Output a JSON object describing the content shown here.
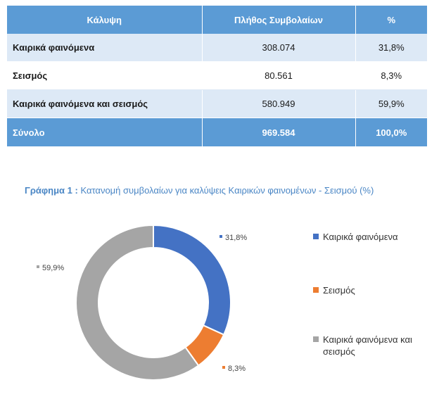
{
  "table": {
    "headers": [
      "Κάλυψη",
      "Πλήθος Συμβολαίων",
      "%"
    ],
    "rows": [
      {
        "label": "Καιρικά φαινόμενα",
        "count": "308.074",
        "pct": "31,8%"
      },
      {
        "label": "Σεισμός",
        "count": "80.561",
        "pct": "8,3%"
      },
      {
        "label": "Καιρικά φαινόμενα και σεισμός",
        "count": "580.949",
        "pct": "59,9%"
      }
    ],
    "total": {
      "label": "Σύνολο",
      "count": "969.584",
      "pct": "100,0%"
    }
  },
  "chart_title_lead": "Γράφημα 1 :",
  "chart_title_text": "Κατανομή συμβολαίων για καλύψεις Καιρικών φαινομένων - Σεισμού (%)",
  "chart_data": {
    "type": "pie",
    "variant": "donut",
    "title": "Κατανομή συμβολαίων για καλύψεις Καιρικών φαινομένων - Σεισμού (%)",
    "categories": [
      "Καιρικά φαινόμενα",
      "Σεισμός",
      "Καιρικά φαινόμενα και σεισμός"
    ],
    "values": [
      31.8,
      8.3,
      59.9
    ],
    "data_labels": [
      "31,8%",
      "8,3%",
      "59,9%"
    ],
    "colors": [
      "#4472c4",
      "#ed7d31",
      "#a5a5a5"
    ],
    "legend_position": "right",
    "start_angle": "12 o'clock",
    "direction": "clockwise"
  }
}
